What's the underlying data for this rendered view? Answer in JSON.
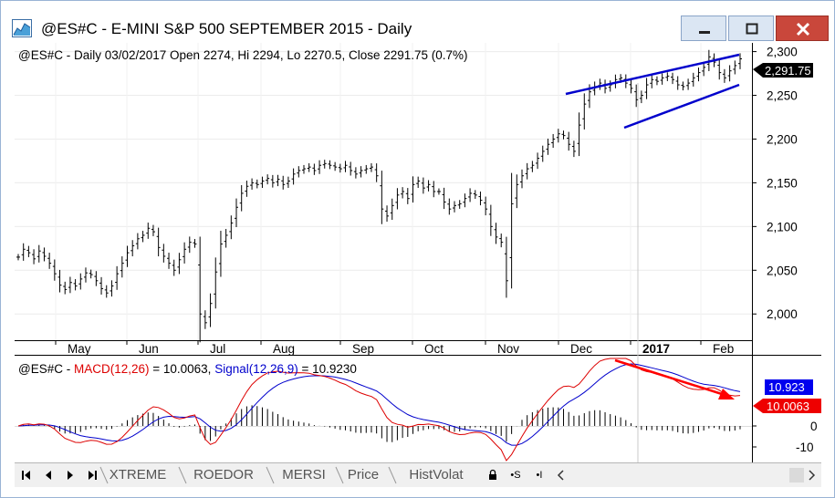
{
  "window": {
    "title": "@ES#C - E-MINI S&P 500 SEPTEMBER 2015 - Daily"
  },
  "price_panel": {
    "header": "@ES#C - Daily 03/02/2017 Open 2274, Hi 2294, Lo 2270.5, Close 2291.75 (0.7%)",
    "last_price_label": "2,291.75",
    "months": [
      "May",
      "Jun",
      "Jul",
      "Aug",
      "Sep",
      "Oct",
      "Nov",
      "Dec",
      "2017",
      "Feb"
    ]
  },
  "macd_panel": {
    "label_symbol": "@ES#C - ",
    "label_macd": "MACD(12,26)",
    "label_macd_value": " = 10.0063, ",
    "label_signal": "Signal(12,26,9)",
    "label_signal_value": " = 10.9230",
    "signal_badge": "10.923",
    "macd_badge": "10.0063"
  },
  "colors": {
    "trend_channel": "#0000cc",
    "macd": "#dd0000",
    "signal": "#0000cc",
    "annotation_arrow": "#ff0000",
    "last_price_badge": "#000000",
    "signal_badge": "#0000ee",
    "macd_badge": "#ee0000"
  },
  "chart_data": [
    {
      "type": "bar",
      "description": "OHLC daily bars",
      "y_ticks": [
        "2,000",
        "2,050",
        "2,100",
        "2,150",
        "2,200",
        "2,250",
        "2,300"
      ],
      "ylim": [
        1970,
        2310
      ],
      "x_ticks": [
        "May",
        "Jun",
        "Jul",
        "Aug",
        "Sep",
        "Oct",
        "Nov",
        "Dec",
        "2017",
        "Feb"
      ],
      "closes": [
        2065,
        2074,
        2070,
        2063,
        2072,
        2066,
        2058,
        2046,
        2033,
        2028,
        2036,
        2032,
        2040,
        2047,
        2045,
        2038,
        2029,
        2024,
        2032,
        2046,
        2058,
        2070,
        2078,
        2086,
        2090,
        2098,
        2094,
        2076,
        2066,
        2058,
        2050,
        2062,
        2074,
        2082,
        2080,
        2000,
        1990,
        2012,
        2048,
        2080,
        2090,
        2104,
        2122,
        2138,
        2146,
        2150,
        2148,
        2152,
        2155,
        2150,
        2154,
        2148,
        2152,
        2160,
        2164,
        2166,
        2168,
        2164,
        2170,
        2172,
        2170,
        2168,
        2166,
        2170,
        2164,
        2160,
        2164,
        2166,
        2168,
        2158,
        2120,
        2112,
        2124,
        2136,
        2140,
        2132,
        2148,
        2152,
        2144,
        2148,
        2140,
        2140,
        2128,
        2120,
        2124,
        2126,
        2132,
        2138,
        2136,
        2130,
        2120,
        2100,
        2088,
        2082,
        2038,
        2126,
        2148,
        2158,
        2166,
        2170,
        2178,
        2186,
        2194,
        2200,
        2206,
        2204,
        2194,
        2186,
        2216,
        2240,
        2254,
        2260,
        2264,
        2258,
        2262,
        2268,
        2270,
        2264,
        2258,
        2245,
        2250,
        2262,
        2268,
        2266,
        2270,
        2272,
        2268,
        2262,
        2260,
        2264,
        2270,
        2276,
        2282,
        2294,
        2288,
        2276,
        2270,
        2278,
        2284,
        2291.75
      ]
    },
    {
      "type": "line",
      "description": "MACD panel",
      "y_ticks": [
        "-10",
        "0"
      ],
      "series": [
        {
          "name": "MACD(12,26)",
          "last": 10.0063
        },
        {
          "name": "Signal(12,26,9)",
          "last": 10.923
        }
      ]
    }
  ],
  "tabs": {
    "sheets": [
      "XTREME",
      "ROEDOR",
      "MERSI",
      "Price",
      "HistVolat"
    ],
    "tools": [
      "🔒",
      "•S",
      "•I"
    ]
  }
}
